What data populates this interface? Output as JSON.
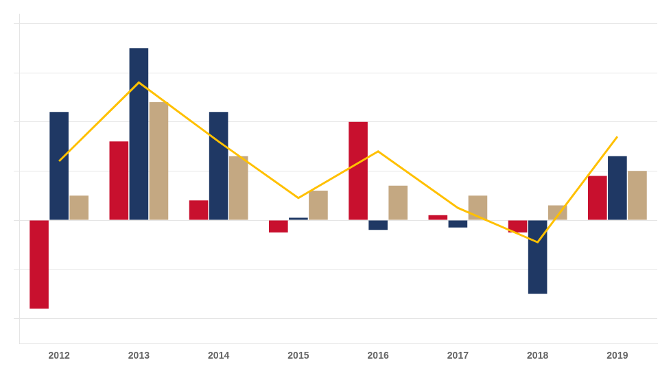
{
  "chart_data": {
    "type": "bar",
    "categories": [
      "2012",
      "2013",
      "2014",
      "2015",
      "2016",
      "2017",
      "2018",
      "2019"
    ],
    "series": [
      {
        "color": "#C8102E",
        "values": [
          -1.8,
          1.6,
          0.4,
          -0.25,
          2.0,
          0.1,
          -0.25,
          0.9
        ]
      },
      {
        "color": "#1F3864",
        "values": [
          2.2,
          3.5,
          2.2,
          0.05,
          -0.2,
          -0.15,
          -1.5,
          1.3
        ]
      },
      {
        "color": "#C4A882",
        "values": [
          0.5,
          2.4,
          1.3,
          0.6,
          0.7,
          0.5,
          0.3,
          1.0
        ]
      },
      {
        "type": "line",
        "color": "#FFC000",
        "values": [
          1.2,
          2.8,
          1.6,
          0.45,
          1.4,
          0.25,
          -0.45,
          1.7
        ]
      }
    ],
    "ylim": [
      -2.5,
      4.2
    ],
    "yticks": [
      -2,
      -1,
      0,
      1,
      2,
      3,
      4
    ],
    "grid": true,
    "tick_labels": "x"
  }
}
